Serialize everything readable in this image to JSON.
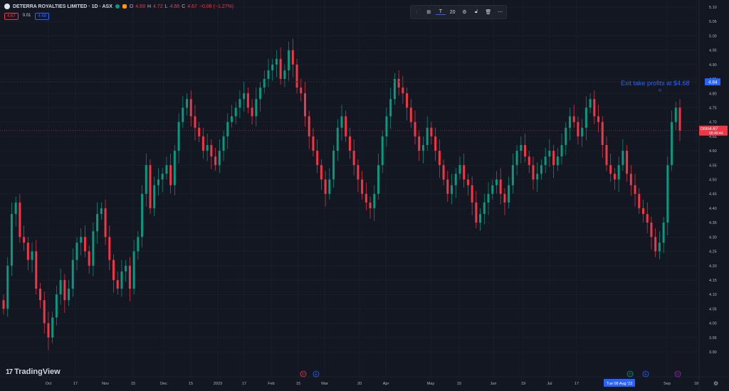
{
  "legend": {
    "title": "DETERRA ROYALTIES LIMITED · 1D · ASX",
    "o_key": "O",
    "o_val": "4.69",
    "h_key": "H",
    "h_val": "4.72",
    "l_key": "L",
    "l_val": "4.66",
    "c_key": "C",
    "c_val": "4.67",
    "change": "−0.06 (−1.27%)"
  },
  "price_boxes": {
    "bid": "4.67",
    "spread": "0.01",
    "ask": "4.68"
  },
  "toolbar": {
    "width_value": "20"
  },
  "brand": {
    "logo": "17",
    "name": "TradingView"
  },
  "colors": {
    "bg": "#131722",
    "up": "#089981",
    "down": "#f23645",
    "grid": "#1f2330",
    "accent": "#2962ff"
  },
  "chart_data": {
    "type": "candlestick",
    "ylim": [
      3.9,
      5.1
    ],
    "y_ticks": [
      "5.10",
      "5.05",
      "5.00",
      "4.95",
      "4.90",
      "4.85",
      "4.80",
      "4.75",
      "4.70",
      "4.65",
      "4.60",
      "4.55",
      "4.50",
      "4.45",
      "4.40",
      "4.35",
      "4.30",
      "4.25",
      "4.20",
      "4.15",
      "4.10",
      "4.05",
      "4.00",
      "3.95",
      "3.90"
    ],
    "x_ticks": [
      "Oct",
      "17",
      "Nov",
      "15",
      "Dec",
      "15",
      "2023",
      "17",
      "Feb",
      "15",
      "Mar",
      "20",
      "Apr",
      "May",
      "15",
      "Jun",
      "19",
      "Jul",
      "17",
      "Sep",
      "18"
    ],
    "crosshair_date": "Tue 08 Aug '23",
    "last_price": {
      "symbol": "DRR",
      "price": "4.67",
      "countdown": "05:40:44",
      "value": 4.67
    },
    "crosshair_price": {
      "label": "4.84",
      "value": 4.84
    },
    "annotation": {
      "text": "Exit take profits at $4.68",
      "value": 4.68
    },
    "event_markers": [
      "D",
      "E",
      "D",
      "E",
      "D",
      "S"
    ],
    "closes": [
      4.05,
      4.2,
      4.38,
      4.42,
      4.3,
      4.28,
      4.22,
      4.25,
      4.12,
      4.08,
      4.0,
      3.95,
      4.02,
      4.1,
      4.15,
      4.08,
      4.12,
      4.22,
      4.28,
      4.3,
      4.25,
      4.2,
      4.32,
      4.38,
      4.4,
      4.3,
      4.22,
      4.15,
      4.12,
      4.18,
      4.2,
      4.12,
      4.25,
      4.3,
      4.45,
      4.55,
      4.4,
      4.48,
      4.5,
      4.52,
      4.55,
      4.48,
      4.6,
      4.7,
      4.75,
      4.78,
      4.72,
      4.68,
      4.65,
      4.6,
      4.62,
      4.58,
      4.55,
      4.6,
      4.65,
      4.7,
      4.72,
      4.75,
      4.78,
      4.8,
      4.75,
      4.72,
      4.78,
      4.82,
      4.85,
      4.88,
      4.9,
      4.92,
      4.85,
      4.88,
      4.95,
      4.9,
      4.82,
      4.8,
      4.72,
      4.65,
      4.6,
      4.55,
      4.5,
      4.45,
      4.5,
      4.6,
      4.68,
      4.72,
      4.65,
      4.6,
      4.55,
      4.5,
      4.45,
      4.42,
      4.4,
      4.45,
      4.55,
      4.65,
      4.72,
      4.78,
      4.85,
      4.82,
      4.8,
      4.75,
      4.7,
      4.65,
      4.6,
      4.62,
      4.68,
      4.65,
      4.6,
      4.55,
      4.5,
      4.45,
      4.48,
      4.52,
      4.55,
      4.5,
      4.48,
      4.42,
      4.35,
      4.38,
      4.42,
      4.45,
      4.48,
      4.5,
      4.45,
      4.42,
      4.48,
      4.55,
      4.6,
      4.62,
      4.58,
      4.55,
      4.5,
      4.52,
      4.55,
      4.58,
      4.6,
      4.55,
      4.58,
      4.62,
      4.68,
      4.72,
      4.7,
      4.65,
      4.68,
      4.75,
      4.78,
      4.72,
      4.7,
      4.62,
      4.55,
      4.52,
      4.5,
      4.55,
      4.6,
      4.52,
      4.48,
      4.45,
      4.4,
      4.38,
      4.35,
      4.3,
      4.25,
      4.28,
      4.35,
      4.55,
      4.7,
      4.75,
      4.67
    ]
  }
}
